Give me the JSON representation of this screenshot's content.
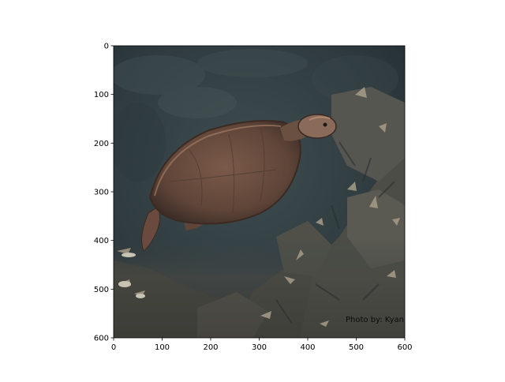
{
  "image": {
    "subject": "sea turtle swimming above coral and seagrass",
    "style": "painterly underwater photograph",
    "watermark": "Photo by: Kyan Pollock",
    "colors": {
      "water_dark": "#2a3438",
      "water_mid": "#3d4a4c",
      "turtle_shell": "#6e5244",
      "turtle_edge": "#a07a63",
      "turtle_head": "#8a6a58",
      "coral": "#5a5a50",
      "coral_light": "#a69c88"
    }
  },
  "axes": {
    "x_ticks": [
      "0",
      "100",
      "200",
      "300",
      "400",
      "500",
      "600"
    ],
    "y_ticks": [
      "0",
      "100",
      "200",
      "300",
      "400",
      "500",
      "600"
    ],
    "xlim": [
      0,
      600
    ],
    "ylim": [
      600,
      0
    ]
  }
}
